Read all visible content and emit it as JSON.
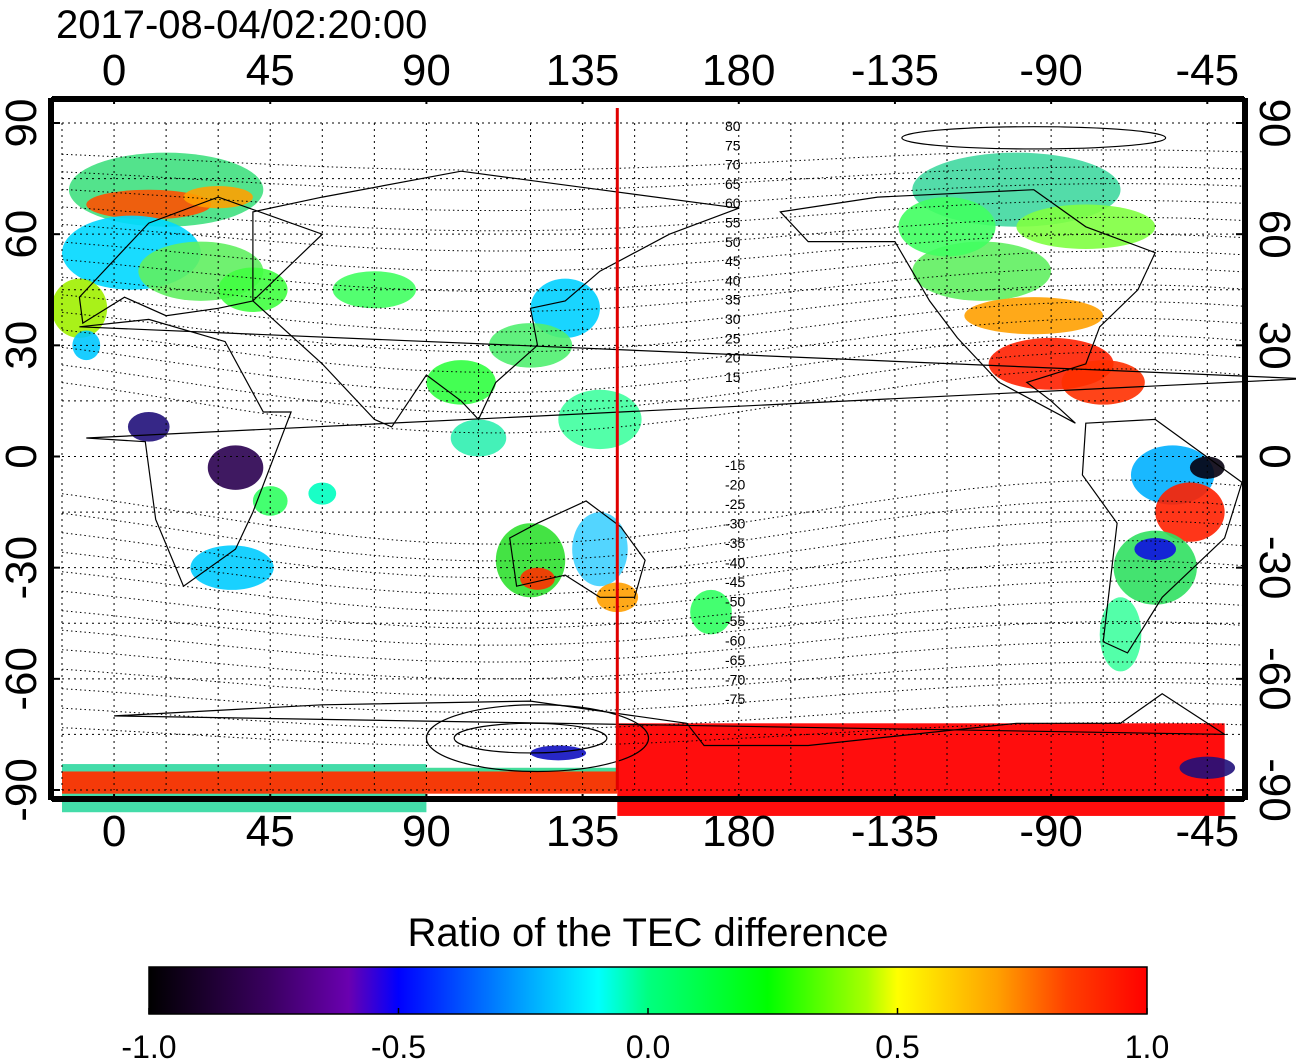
{
  "title": "2017-08-04/02:20:00",
  "top_axis_ticks": [
    "0",
    "45",
    "90",
    "135",
    "180",
    "-135",
    "-90",
    "-45"
  ],
  "bottom_axis_ticks": [
    "0",
    "45",
    "90",
    "135",
    "180",
    "-135",
    "-90",
    "-45"
  ],
  "left_axis_ticks": [
    "90",
    "60",
    "30",
    "0",
    "-30",
    "-60",
    "-90"
  ],
  "right_axis_ticks": [
    "90",
    "60",
    "30",
    "0",
    "-30",
    "-60",
    "-90"
  ],
  "mlat_north_labels": [
    "80",
    "75",
    "70",
    "65",
    "60",
    "55",
    "50",
    "45",
    "40",
    "35",
    "30",
    "25",
    "20",
    "15"
  ],
  "mlat_south_labels": [
    "-15",
    "-20",
    "-25",
    "-30",
    "-35",
    "-40",
    "-45",
    "-50",
    "-55",
    "-60",
    "-65",
    "-70",
    "-75"
  ],
  "colorbar": {
    "label": "Ratio of the TEC difference",
    "ticks": [
      "-1.0",
      "-0.5",
      "0.0",
      "0.5",
      "1.0"
    ],
    "range": [
      -1.0,
      1.0
    ]
  },
  "highlight_longitude": 145,
  "colors": {
    "highlight_line": "#e00000",
    "scale": [
      "#000000",
      "#3a0060",
      "#6a00b0",
      "#0000ff",
      "#00a8ff",
      "#00ffff",
      "#00ff80",
      "#00ff00",
      "#aaff00",
      "#ffff00",
      "#ffa000",
      "#ff4000",
      "#ff0000"
    ]
  }
}
